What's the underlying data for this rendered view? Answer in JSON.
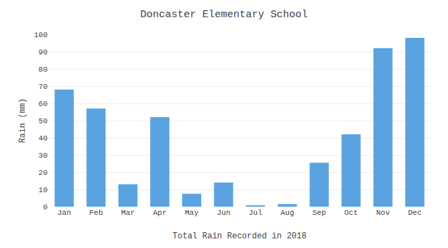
{
  "chart_data": {
    "type": "bar",
    "title": "Doncaster Elementary School",
    "xlabel": "Total Rain Recorded in 2018",
    "ylabel": "Rain (mm)",
    "categories": [
      "Jan",
      "Feb",
      "Mar",
      "Apr",
      "May",
      "Jun",
      "Jul",
      "Aug",
      "Sep",
      "Oct",
      "Nov",
      "Dec"
    ],
    "values": [
      68,
      57,
      13,
      52,
      7.5,
      14,
      0.7,
      1.5,
      25.5,
      42,
      92,
      98
    ],
    "color": "#5BA3E0",
    "ylim": [
      0,
      100
    ],
    "yticks": [
      0,
      10,
      20,
      30,
      40,
      50,
      60,
      70,
      80,
      90,
      100
    ],
    "grid": true
  }
}
